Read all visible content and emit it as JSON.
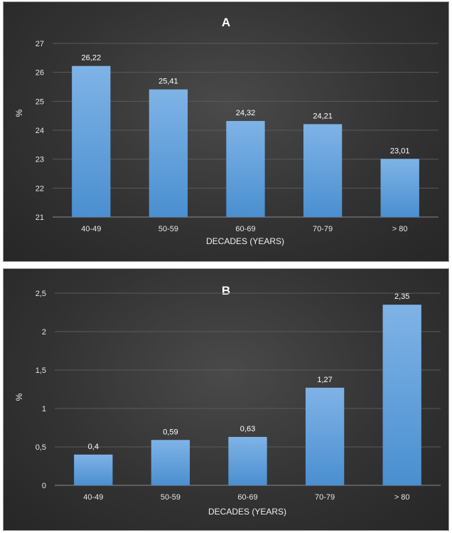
{
  "chart_data": [
    {
      "type": "bar",
      "title": "A",
      "xlabel": "DECADES (YEARS)",
      "ylabel": "%",
      "categories": [
        "40-49",
        "50-59",
        "60-69",
        "70-79",
        "> 80"
      ],
      "values": [
        26.22,
        25.41,
        24.32,
        24.21,
        23.01
      ],
      "value_labels": [
        "26,22",
        "25,41",
        "24,32",
        "24,21",
        "23,01"
      ],
      "ylim": [
        21,
        27
      ],
      "yticks": [
        21,
        22,
        23,
        24,
        25,
        26,
        27
      ],
      "ytick_labels": [
        "21",
        "22",
        "23",
        "24",
        "25",
        "26",
        "27"
      ],
      "grid": true,
      "bar_color": "#5b9bd5"
    },
    {
      "type": "bar",
      "title": "B",
      "xlabel": "DECADES (YEARS)",
      "ylabel": "%",
      "categories": [
        "40-49",
        "50-59",
        "60-69",
        "70-79",
        "> 80"
      ],
      "values": [
        0.4,
        0.59,
        0.63,
        1.27,
        2.35
      ],
      "value_labels": [
        "0,4",
        "0,59",
        "0,63",
        "1,27",
        "2,35"
      ],
      "ylim": [
        0,
        2.5
      ],
      "yticks": [
        0,
        0.5,
        1,
        1.5,
        2,
        2.5
      ],
      "ytick_labels": [
        "0",
        "0,5",
        "1",
        "1,5",
        "2",
        "2,5"
      ],
      "grid": true,
      "bar_color": "#5b9bd5"
    }
  ]
}
